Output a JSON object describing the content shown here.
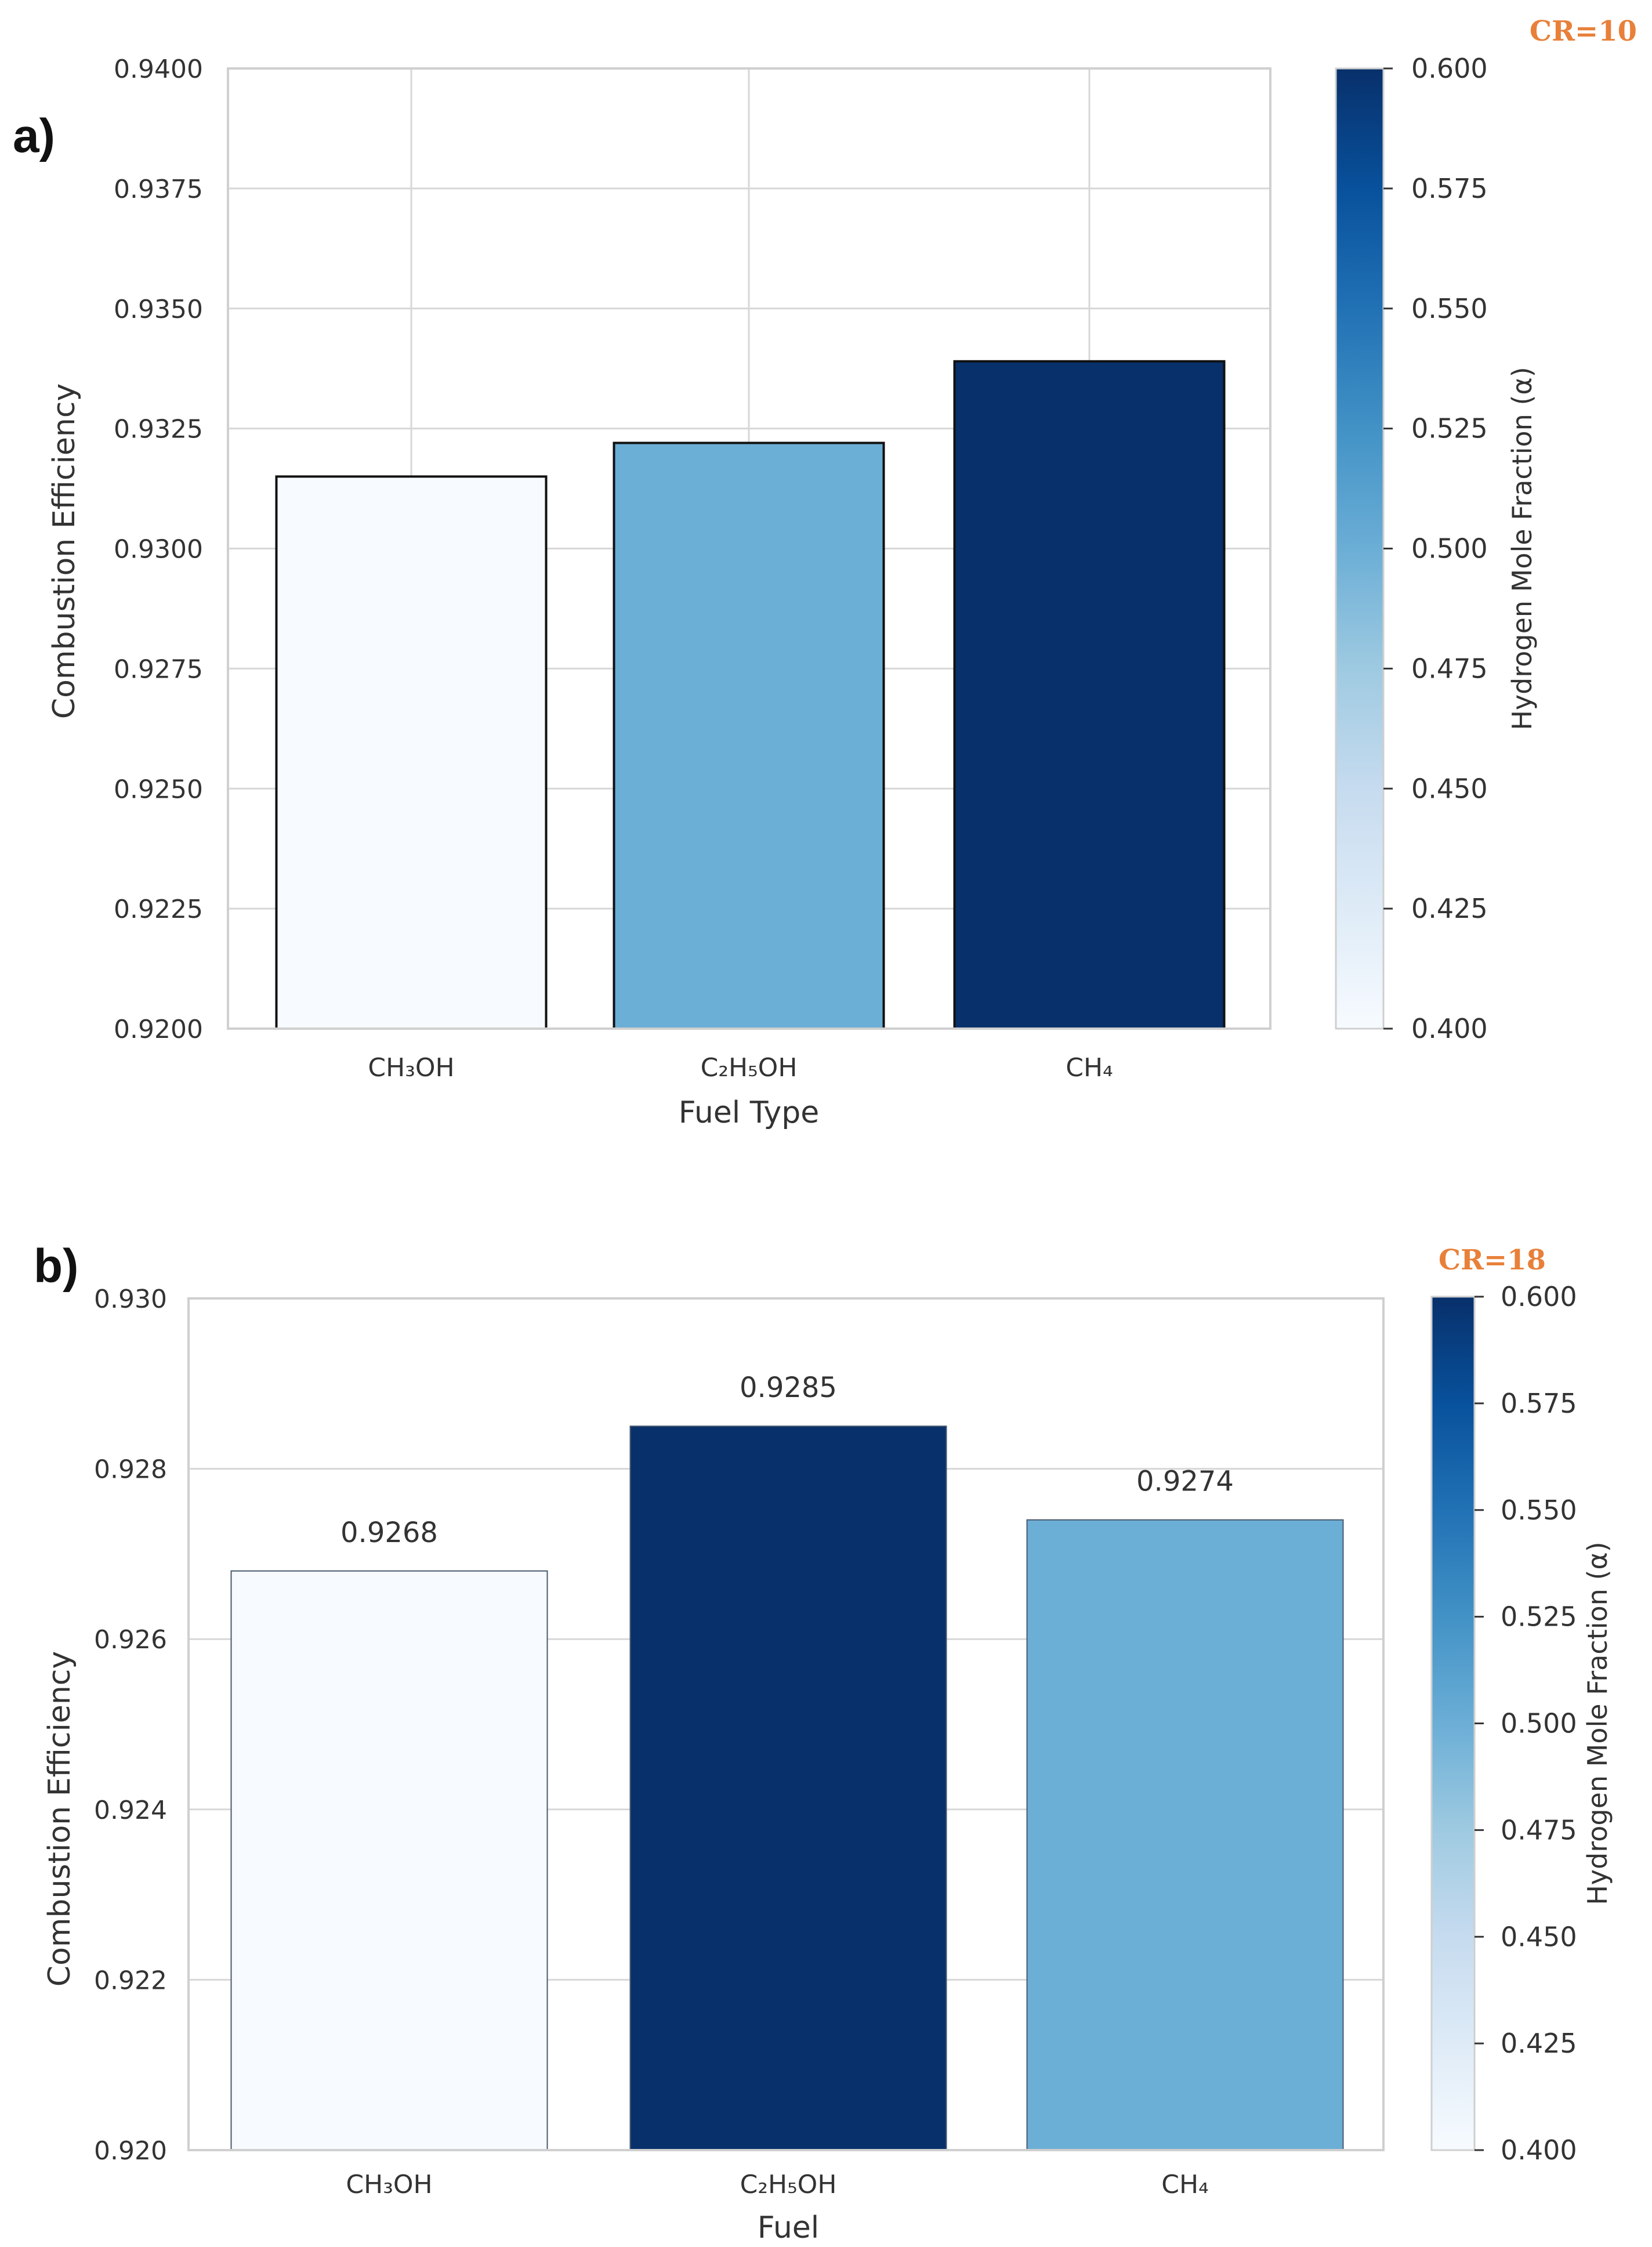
{
  "chart_data": [
    {
      "type": "bar",
      "panel_label": "a)",
      "annotation": "CR=10",
      "xlabel": "Fuel Type",
      "ylabel": "Combustion Efficiency",
      "categories": [
        "CH₃OH",
        "C₂H₅OH",
        "CH₄"
      ],
      "values": [
        0.9315,
        0.9322,
        0.9339
      ],
      "hydrogen_fraction": [
        0.4,
        0.5,
        0.6
      ],
      "bar_colors": [
        "#F7FBFF",
        "#6BAED6",
        "#08306B"
      ],
      "ylim": [
        0.92,
        0.94
      ],
      "yticks": [
        "0.9200",
        "0.9225",
        "0.9250",
        "0.9275",
        "0.9300",
        "0.9325",
        "0.9350",
        "0.9375",
        "0.9400"
      ],
      "grid": "on",
      "data_labels": [],
      "colorbar": {
        "label": "Hydrogen Mole Fraction (α)",
        "range": [
          0.4,
          0.6
        ],
        "ticks": [
          "0.400",
          "0.425",
          "0.450",
          "0.475",
          "0.500",
          "0.525",
          "0.550",
          "0.575",
          "0.600"
        ],
        "colormap": "Blues"
      }
    },
    {
      "type": "bar",
      "panel_label": "b)",
      "annotation": "CR=18",
      "xlabel": "Fuel",
      "ylabel": "Combustion Efficiency",
      "categories": [
        "CH₃OH",
        "C₂H₅OH",
        "CH₄"
      ],
      "values": [
        0.9268,
        0.9285,
        0.9274
      ],
      "hydrogen_fraction": [
        0.4,
        0.6,
        0.5
      ],
      "bar_colors": [
        "#F7FBFF",
        "#08306B",
        "#6BAED6"
      ],
      "ylim": [
        0.92,
        0.93
      ],
      "yticks": [
        "0.920",
        "0.922",
        "0.924",
        "0.926",
        "0.928",
        "0.930"
      ],
      "grid": "on",
      "data_labels": [
        "0.9268",
        "0.9285",
        "0.9274"
      ],
      "colorbar": {
        "label": "Hydrogen Mole Fraction (α)",
        "range": [
          0.4,
          0.6
        ],
        "ticks": [
          "0.400",
          "0.425",
          "0.450",
          "0.475",
          "0.500",
          "0.525",
          "0.550",
          "0.575",
          "0.600"
        ],
        "colormap": "Blues"
      }
    }
  ]
}
